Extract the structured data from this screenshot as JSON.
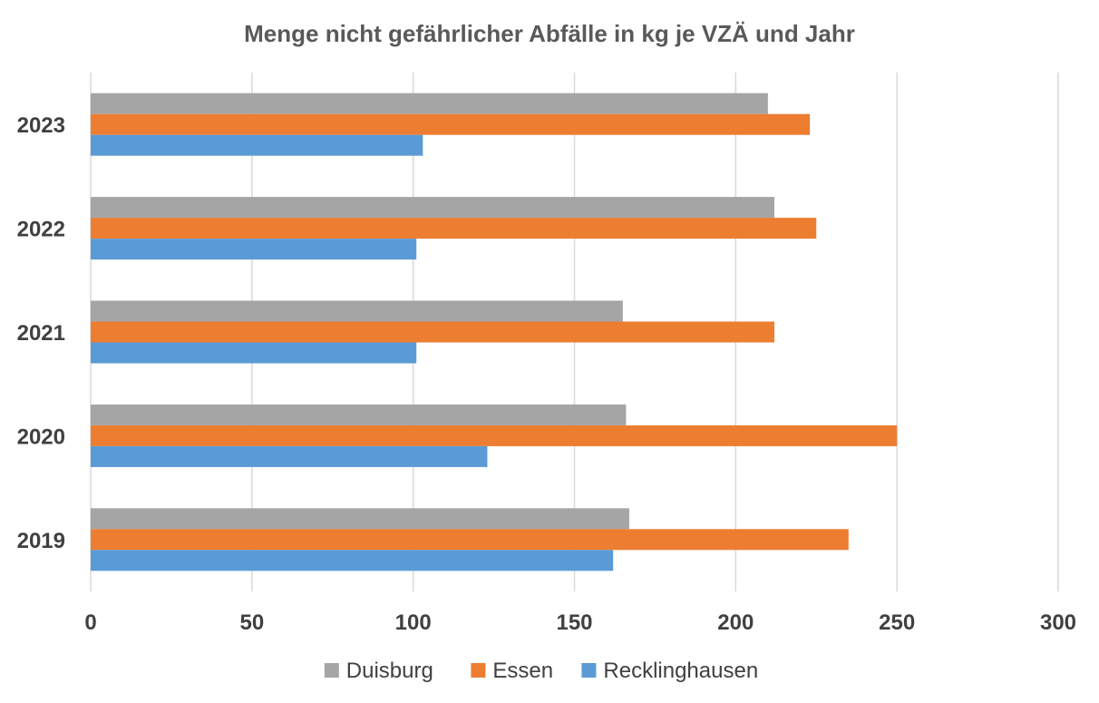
{
  "chart_data": {
    "type": "bar",
    "orientation": "horizontal",
    "title": "Menge nicht gefährlicher Abfälle in kg je VZÄ und Jahr",
    "xlabel": "",
    "ylabel": "",
    "categories": [
      "2019",
      "2020",
      "2021",
      "2022",
      "2023"
    ],
    "series": [
      {
        "name": "Duisburg",
        "color": "#a5a5a5",
        "values": [
          167,
          166,
          165,
          212,
          210
        ]
      },
      {
        "name": "Essen",
        "color": "#ed7d31",
        "values": [
          235,
          250,
          212,
          225,
          223
        ]
      },
      {
        "name": "Recklinghausen",
        "color": "#5b9bd5",
        "values": [
          162,
          123,
          101,
          101,
          103
        ]
      }
    ],
    "xlim": [
      0,
      300
    ],
    "xticks": [
      "0",
      "50",
      "100",
      "150",
      "200",
      "250",
      "300"
    ],
    "grid": true,
    "legend_position": "bottom"
  }
}
